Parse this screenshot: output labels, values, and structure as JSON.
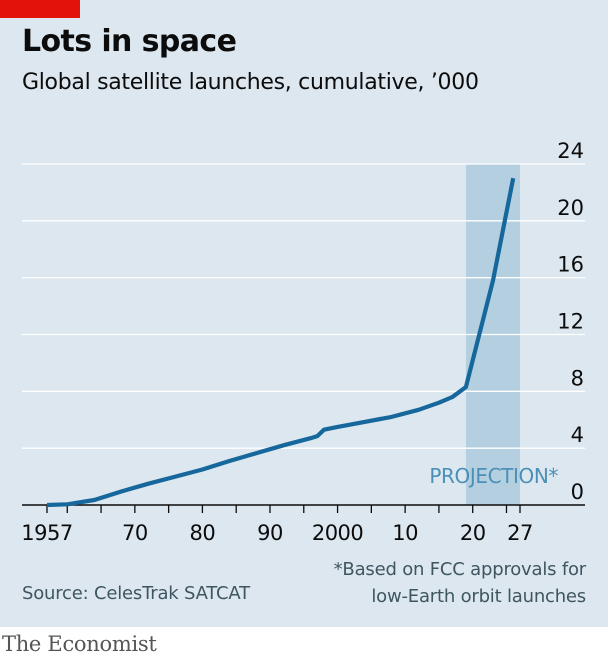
{
  "header": {
    "title": "Lots in space",
    "subtitle": "Global satellite launches, cumulative, ’000"
  },
  "footer": {
    "note_line1": "*Based on FCC approvals for",
    "note_line2": "low-Earth orbit launches",
    "source": "Source: CelesTrak SATCAT",
    "brand": "The Economist"
  },
  "colors": {
    "background": "#dce7ef",
    "line": "#16679c",
    "projection_band": "#b4cfdf",
    "projection_text": "#4a90b8",
    "accent": "#e3120b",
    "grid": "#ffffff",
    "baseline": "#0c0c0c"
  },
  "chart_data": {
    "type": "line",
    "title": "Lots in space",
    "subtitle": "Global satellite launches, cumulative, ’000",
    "xlabel": "",
    "ylabel": "",
    "xlim": [
      1957,
      2027
    ],
    "ylim": [
      0,
      24
    ],
    "x_ticks": [
      1957,
      1960,
      1965,
      1970,
      1975,
      1980,
      1985,
      1990,
      1995,
      2000,
      2005,
      2010,
      2015,
      2020,
      2025,
      2027
    ],
    "x_tick_labels": [
      {
        "year": 1957,
        "label": "1957"
      },
      {
        "year": 1970,
        "label": "70"
      },
      {
        "year": 1980,
        "label": "80"
      },
      {
        "year": 1990,
        "label": "90"
      },
      {
        "year": 2000,
        "label": "2000"
      },
      {
        "year": 2010,
        "label": "10"
      },
      {
        "year": 2020,
        "label": "20"
      },
      {
        "year": 2027,
        "label": "27"
      }
    ],
    "y_ticks": [
      0,
      4,
      8,
      12,
      16,
      20,
      24
    ],
    "y_tick_labels": [
      "0",
      "4",
      "8",
      "12",
      "16",
      "20",
      "24"
    ],
    "y_axis_side": "right",
    "grid": "horizontal",
    "projection": {
      "start": 2019,
      "end": 2027,
      "label": "PROJECTION*"
    },
    "series": [
      {
        "x": [
          1957,
          1960,
          1964,
          1968,
          1972,
          1976,
          1980,
          1984,
          1988,
          1992,
          1996,
          1997,
          1998,
          2000,
          2004,
          2008,
          2012,
          2015,
          2017,
          2019,
          2023,
          2026
        ],
        "values": [
          0,
          0.05,
          0.35,
          0.95,
          1.5,
          2.0,
          2.5,
          3.1,
          3.65,
          4.2,
          4.7,
          4.85,
          5.3,
          5.5,
          5.85,
          6.2,
          6.7,
          7.2,
          7.6,
          8.3,
          15.8,
          23.0
        ]
      }
    ]
  }
}
